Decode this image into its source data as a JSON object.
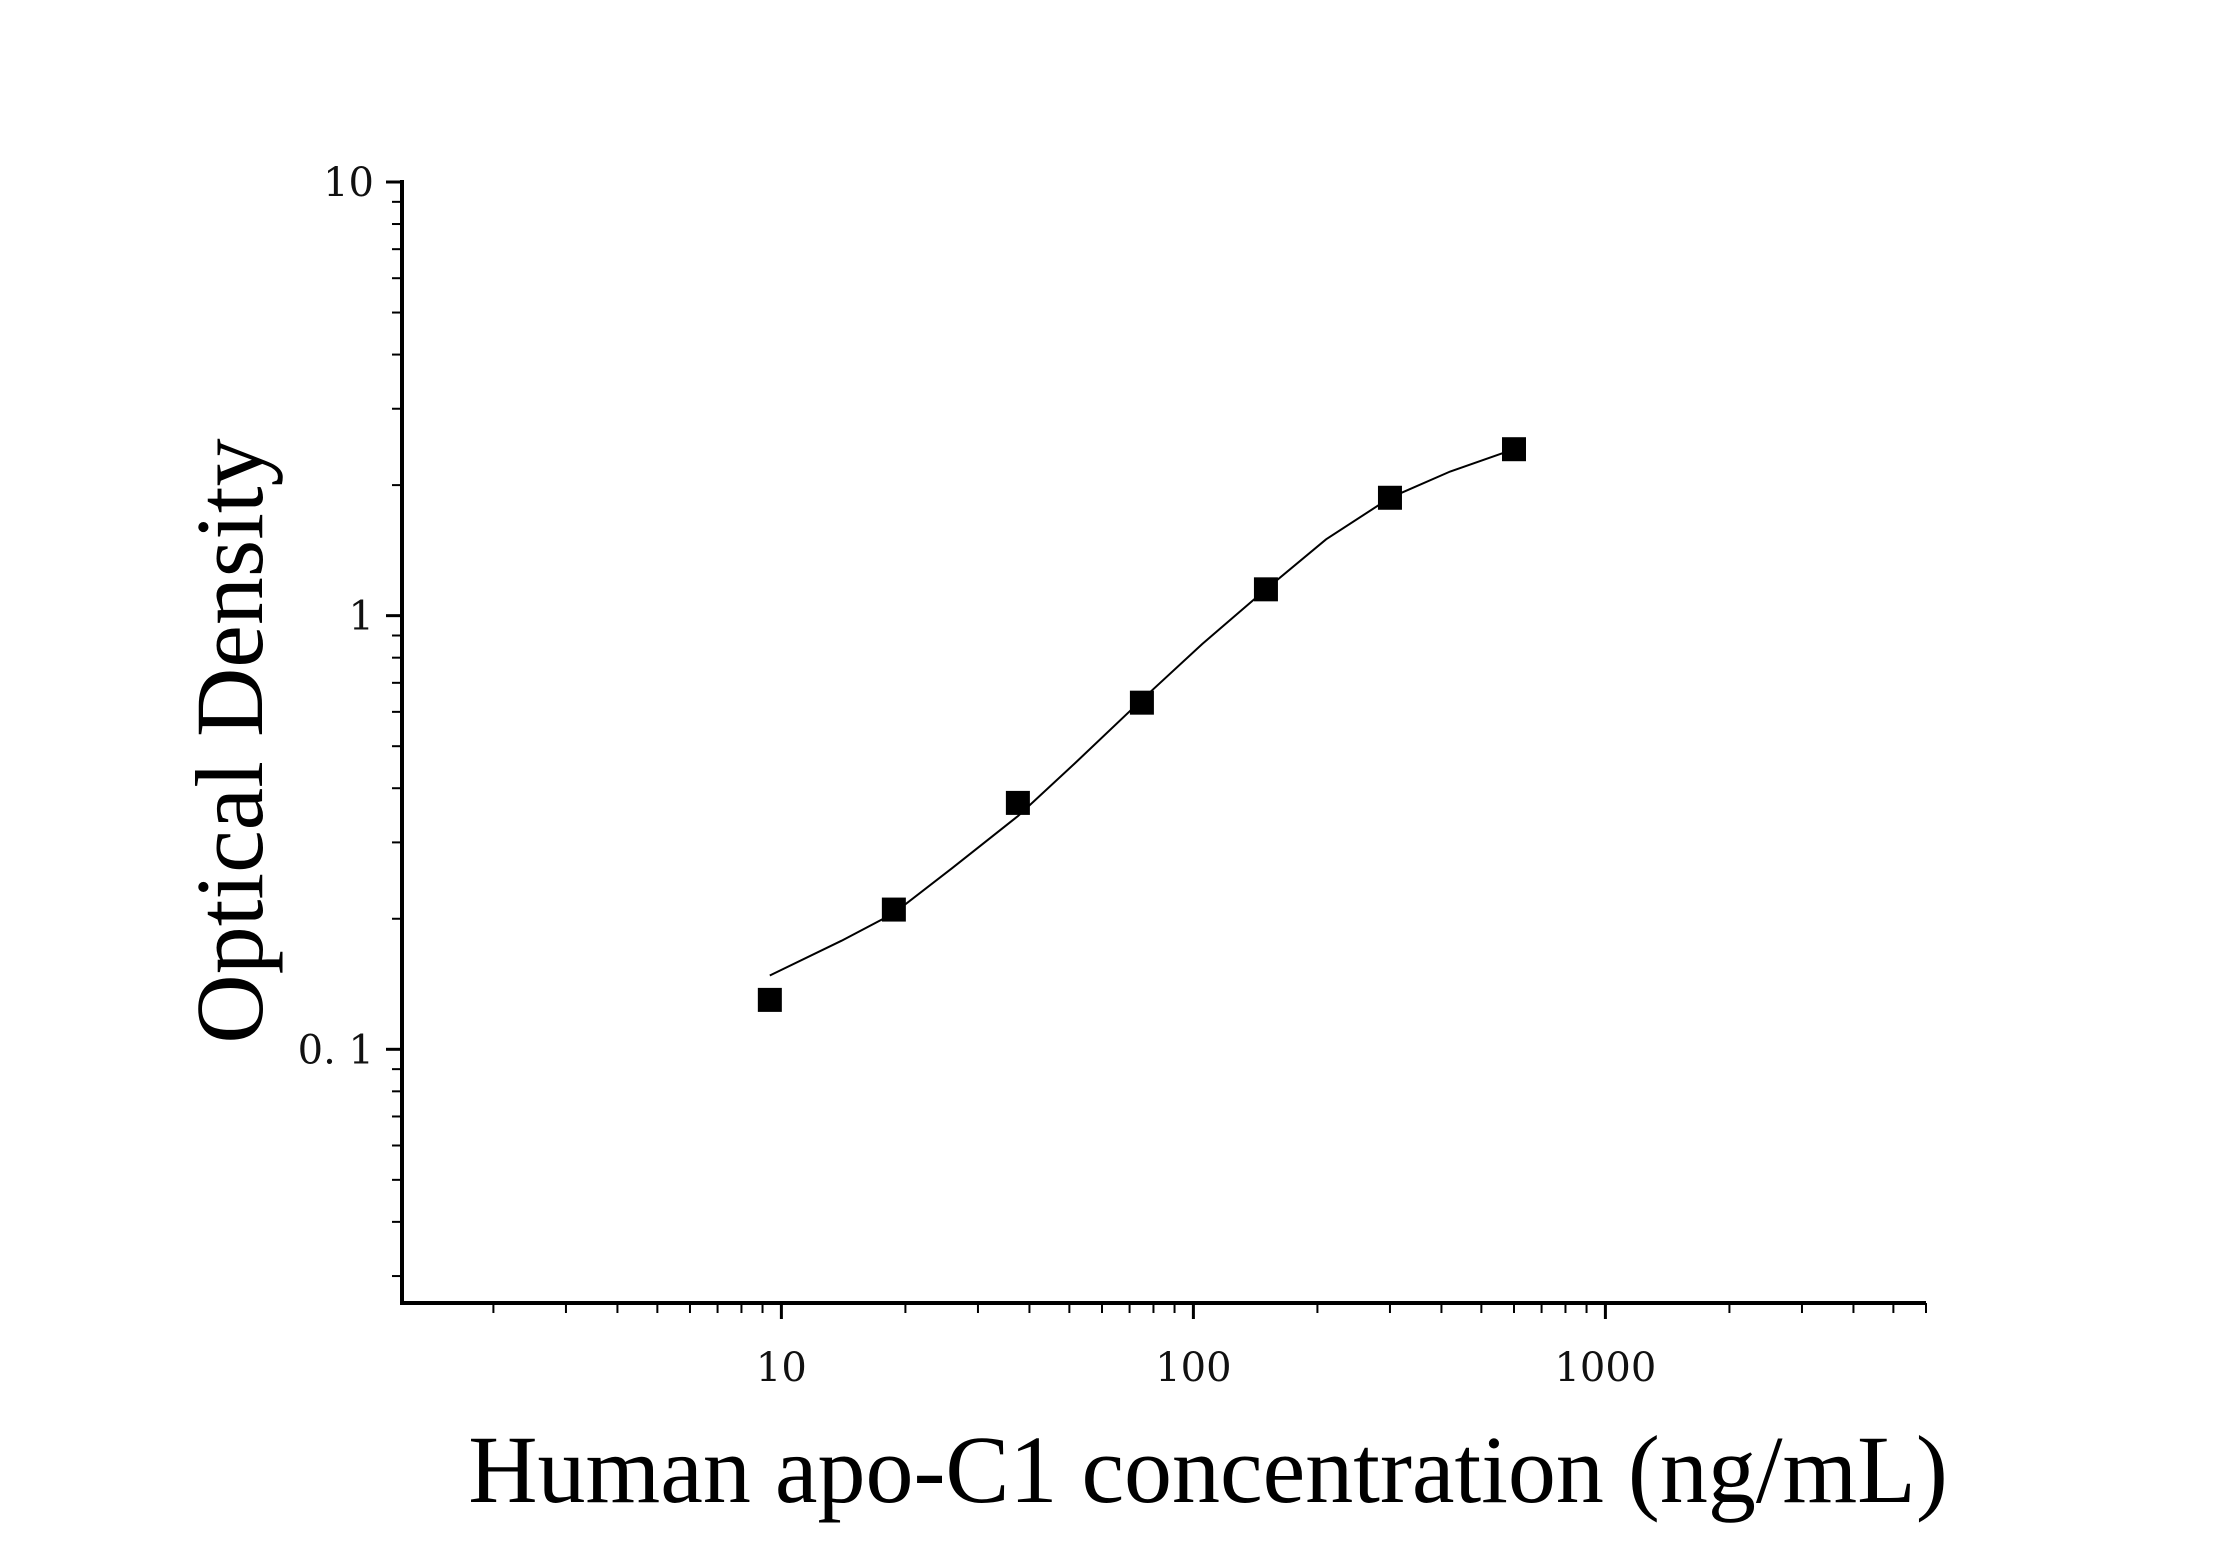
{
  "chart_data": {
    "type": "scatter",
    "xlabel": "Human apo-C1 concentration (ng/mL)",
    "ylabel": "Optical Density",
    "x_scale": "log",
    "y_scale": "log",
    "xlim": [
      1.2,
      6000
    ],
    "ylim": [
      0.026,
      10
    ],
    "x_ticks": [
      {
        "value": 10,
        "label": "10"
      },
      {
        "value": 100,
        "label": "100"
      },
      {
        "value": 1000,
        "label": "1000"
      }
    ],
    "y_ticks": [
      {
        "value": 10,
        "label": "10"
      },
      {
        "value": 1,
        "label": "1"
      },
      {
        "value": 0.1,
        "label": "0. 1"
      }
    ],
    "grid": false,
    "legend": "none",
    "series": [
      {
        "points": [
          {
            "x": 9.375,
            "y": 0.13
          },
          {
            "x": 18.75,
            "y": 0.21
          },
          {
            "x": 37.5,
            "y": 0.37
          },
          {
            "x": 75,
            "y": 0.63
          },
          {
            "x": 150,
            "y": 1.15
          },
          {
            "x": 300,
            "y": 1.87
          },
          {
            "x": 600,
            "y": 2.42
          }
        ],
        "fit_curve": {
          "x": [
            9.375,
            14,
            18.75,
            26,
            37.5,
            52,
            75,
            105,
            150,
            210,
            300,
            420,
            600
          ],
          "y": [
            0.148,
            0.178,
            0.206,
            0.262,
            0.345,
            0.46,
            0.64,
            0.86,
            1.15,
            1.5,
            1.87,
            2.15,
            2.42
          ]
        }
      }
    ],
    "colors": {
      "marker": "#000000",
      "curve": "#000000",
      "axis": "#000000"
    }
  }
}
